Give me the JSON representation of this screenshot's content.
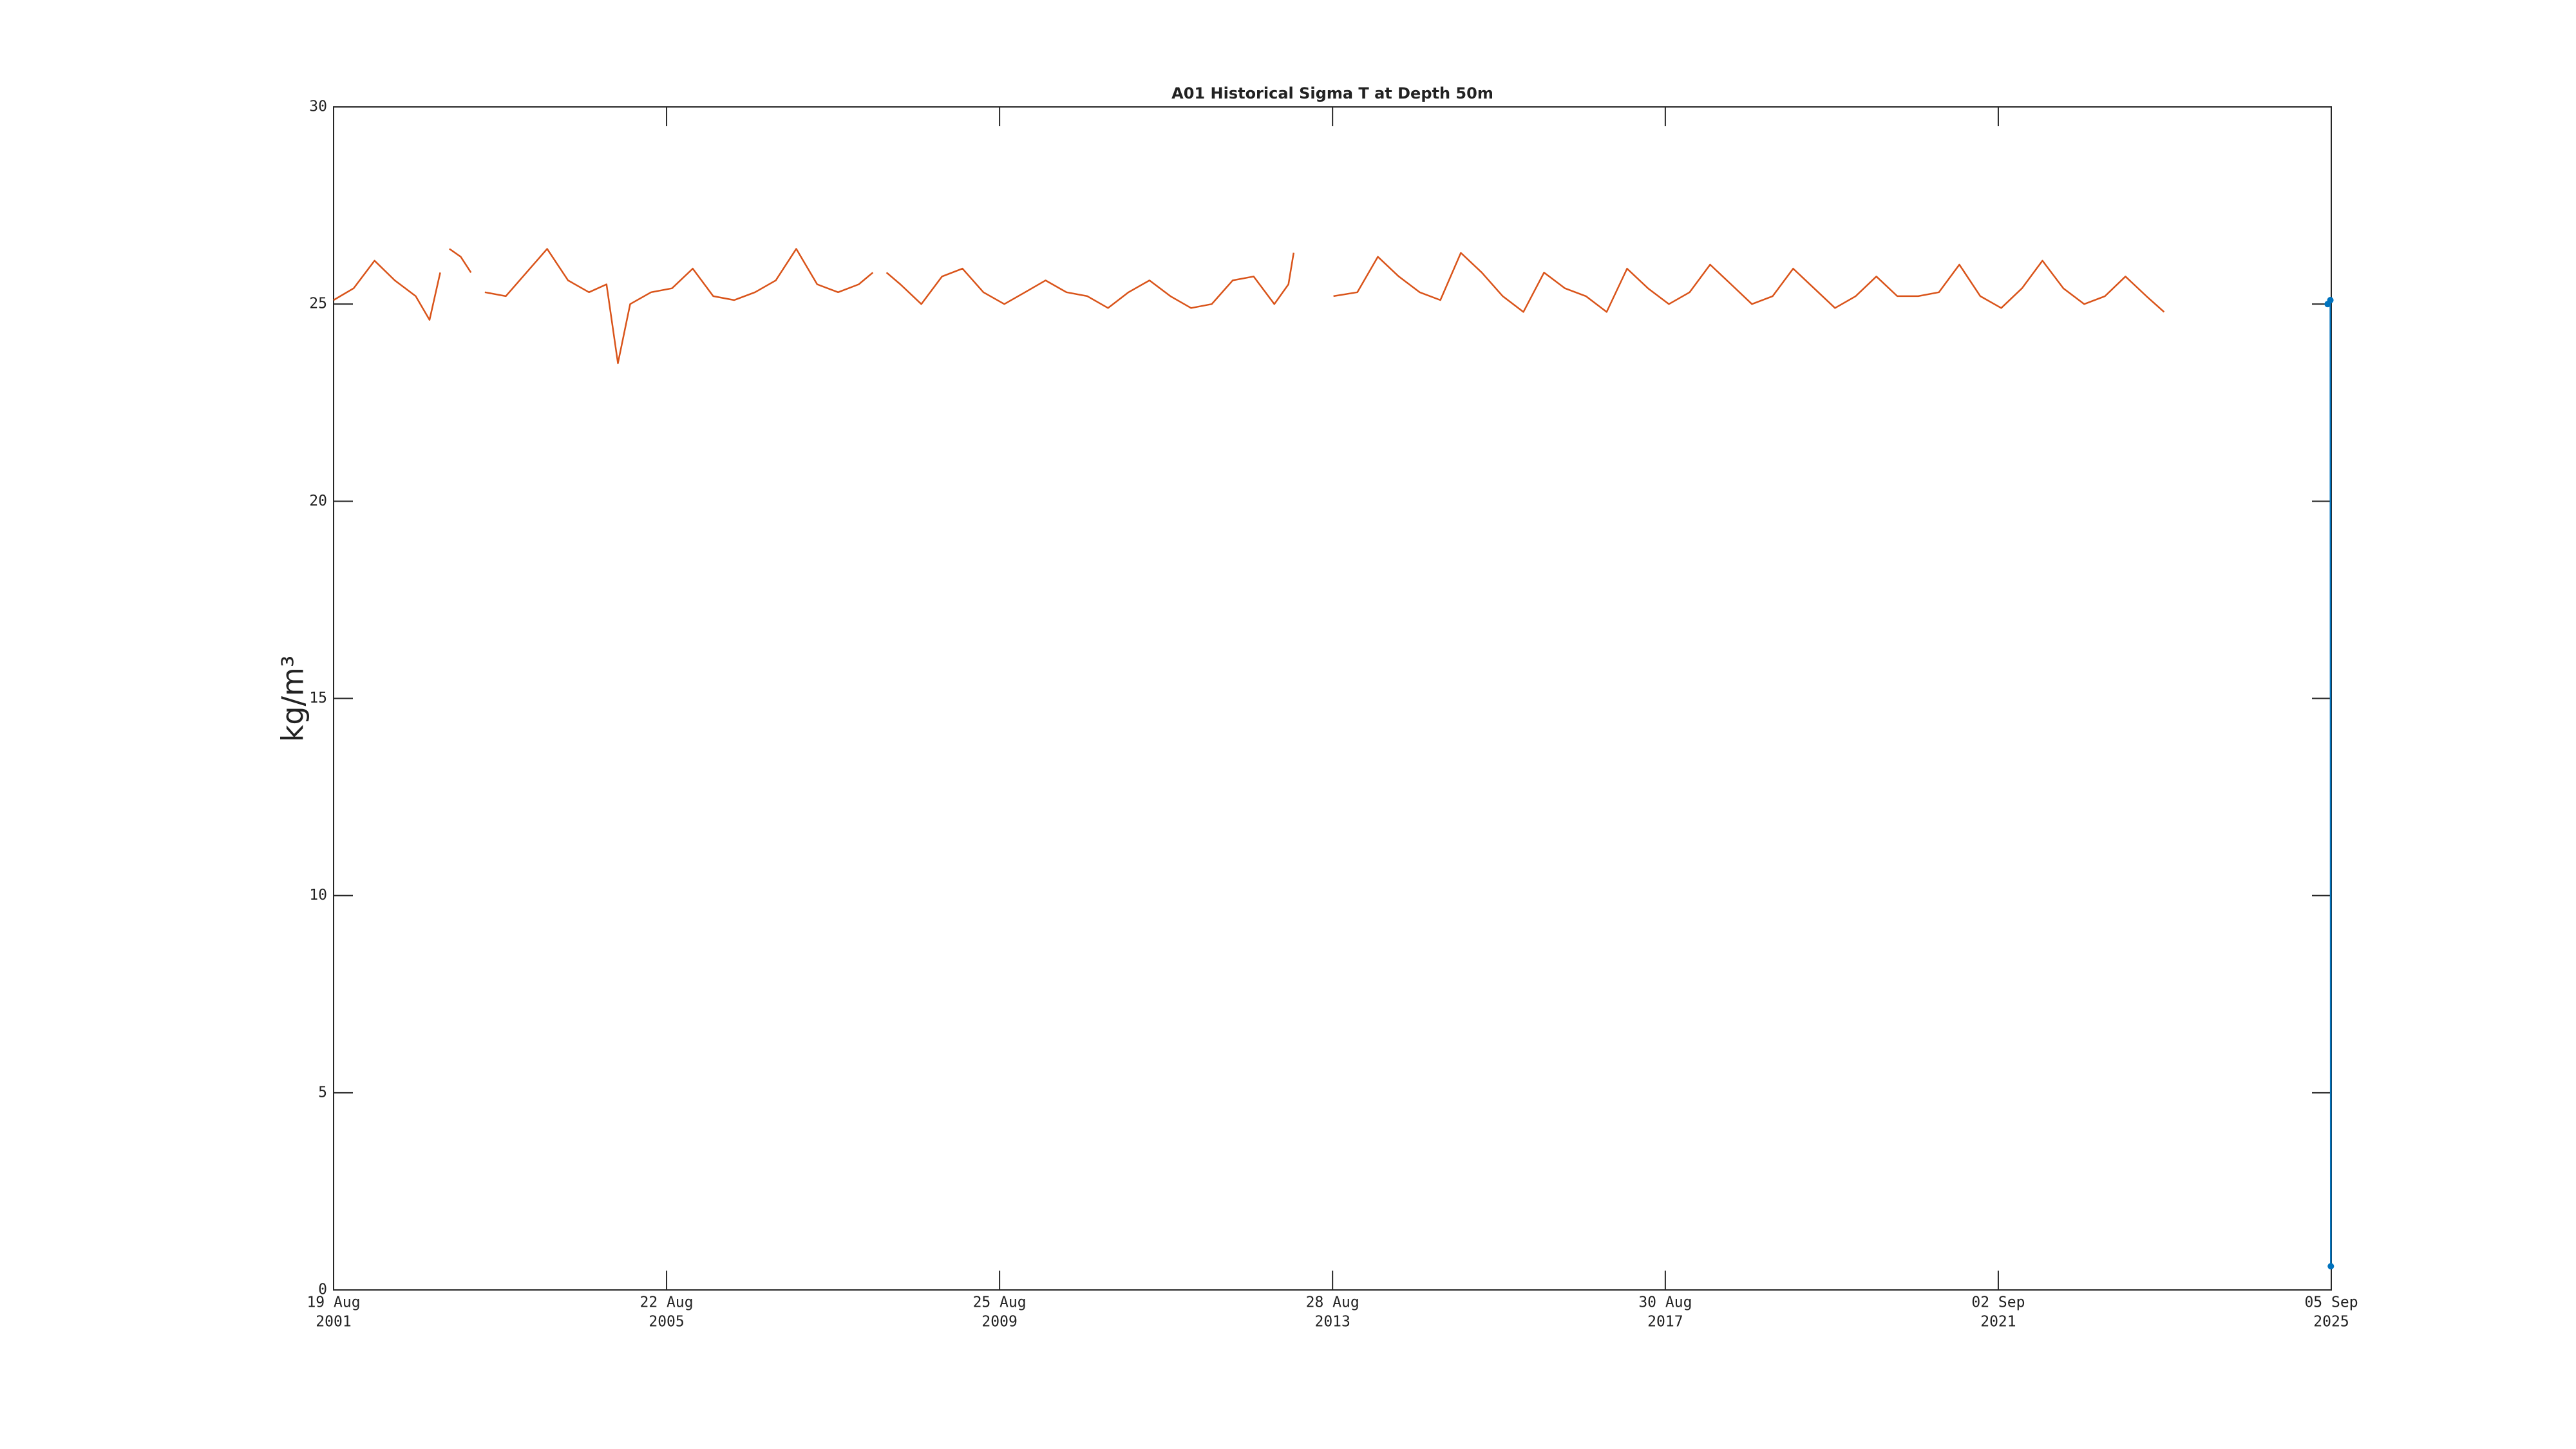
{
  "chart_data": {
    "type": "line",
    "title": "A01 Historical Sigma T at Depth 50m",
    "ylabel": "kg/m³",
    "xlim": [
      "2001-08-19",
      "2025-09-05"
    ],
    "xticks": [
      {
        "value": "2001-08-19",
        "label": [
          "19 Aug",
          "2001"
        ]
      },
      {
        "value": "2005-08-22",
        "label": [
          "22 Aug",
          "2005"
        ]
      },
      {
        "value": "2009-08-25",
        "label": [
          "25 Aug",
          "2009"
        ]
      },
      {
        "value": "2013-08-28",
        "label": [
          "28 Aug",
          "2013"
        ]
      },
      {
        "value": "2017-08-30",
        "label": [
          "30 Aug",
          "2017"
        ]
      },
      {
        "value": "2021-09-02",
        "label": [
          "02 Sep",
          "2021"
        ]
      },
      {
        "value": "2025-09-05",
        "label": [
          "05 Sep",
          "2025"
        ]
      }
    ],
    "ylim": [
      0,
      30
    ],
    "yticks": [
      0,
      5,
      10,
      15,
      20,
      25,
      30
    ],
    "grid": false,
    "series": [
      {
        "color": "#d95319",
        "x": [
          "2001-08-19",
          "2001-11-15",
          "2002-02-15",
          "2002-05-15",
          "2002-08-15",
          "2002-10-15",
          "2002-12-01",
          "2002-12-20",
          "2003-01-10",
          "2003-03-01",
          "2003-04-15",
          "2003-05-15",
          "2003-06-15",
          "2003-09-15",
          "2003-12-15",
          "2004-03-15",
          "2004-06-15",
          "2004-09-15",
          "2004-12-01",
          "2005-01-20",
          "2005-03-15",
          "2005-06-15",
          "2005-09-15",
          "2005-12-15",
          "2006-03-15",
          "2006-06-15",
          "2006-09-15",
          "2006-12-15",
          "2007-03-15",
          "2007-06-15",
          "2007-09-15",
          "2007-12-15",
          "2008-02-15",
          "2008-03-15",
          "2008-04-15",
          "2008-06-15",
          "2008-09-15",
          "2008-12-15",
          "2009-03-15",
          "2009-06-15",
          "2009-09-15",
          "2009-12-15",
          "2010-03-15",
          "2010-06-15",
          "2010-09-15",
          "2010-12-15",
          "2011-03-15",
          "2011-06-15",
          "2011-09-15",
          "2011-12-15",
          "2012-03-15",
          "2012-06-15",
          "2012-09-15",
          "2012-12-15",
          "2013-02-15",
          "2013-03-10",
          "2013-06-01",
          "2013-09-01",
          "2013-12-15",
          "2014-03-15",
          "2014-06-15",
          "2014-09-15",
          "2014-12-15",
          "2015-03-15",
          "2015-06-15",
          "2015-09-15",
          "2015-12-15",
          "2016-03-15",
          "2016-06-15",
          "2016-09-15",
          "2016-12-15",
          "2017-03-15",
          "2017-06-15",
          "2017-09-15",
          "2017-12-15",
          "2018-03-15",
          "2018-06-15",
          "2018-09-15",
          "2018-12-15",
          "2019-03-15",
          "2019-06-15",
          "2019-09-15",
          "2019-12-15",
          "2020-03-15",
          "2020-06-15",
          "2020-09-15",
          "2020-12-15",
          "2021-03-15",
          "2021-06-15",
          "2021-09-15",
          "2021-12-15",
          "2022-03-15",
          "2022-06-15",
          "2022-09-15",
          "2022-12-15",
          "2023-03-15",
          "2023-06-15",
          "2023-09-01"
        ],
        "values": [
          25.1,
          25.4,
          26.1,
          25.6,
          25.2,
          24.6,
          25.8,
          null,
          26.4,
          26.2,
          25.8,
          null,
          25.3,
          25.2,
          25.8,
          26.4,
          25.6,
          25.3,
          25.5,
          23.5,
          25.0,
          25.3,
          25.4,
          25.9,
          25.2,
          25.1,
          25.3,
          25.6,
          26.4,
          25.5,
          25.3,
          25.5,
          25.8,
          null,
          25.8,
          25.5,
          25.0,
          25.7,
          25.9,
          25.3,
          25.0,
          25.3,
          25.6,
          25.3,
          25.2,
          24.9,
          25.3,
          25.6,
          25.2,
          24.9,
          25.0,
          25.6,
          25.7,
          25.0,
          25.5,
          26.3,
          null,
          25.2,
          25.3,
          26.2,
          25.7,
          25.3,
          25.1,
          26.3,
          25.8,
          25.2,
          24.8,
          25.8,
          25.4,
          25.2,
          24.8,
          25.9,
          25.4,
          25.0,
          25.3,
          26.0,
          25.5,
          25.0,
          25.2,
          25.9,
          25.4,
          24.9,
          25.2,
          25.7,
          25.2,
          25.2,
          25.3,
          26.0,
          25.2,
          24.9,
          25.4,
          26.1,
          25.4,
          25.0,
          25.2,
          25.7,
          25.2,
          24.8
        ]
      },
      {
        "color": "#0072bd",
        "marker": true,
        "x": [
          "2025-08-20",
          "2025-09-01",
          "2025-09-03"
        ],
        "values": [
          25.0,
          25.1,
          0.6
        ]
      }
    ]
  }
}
